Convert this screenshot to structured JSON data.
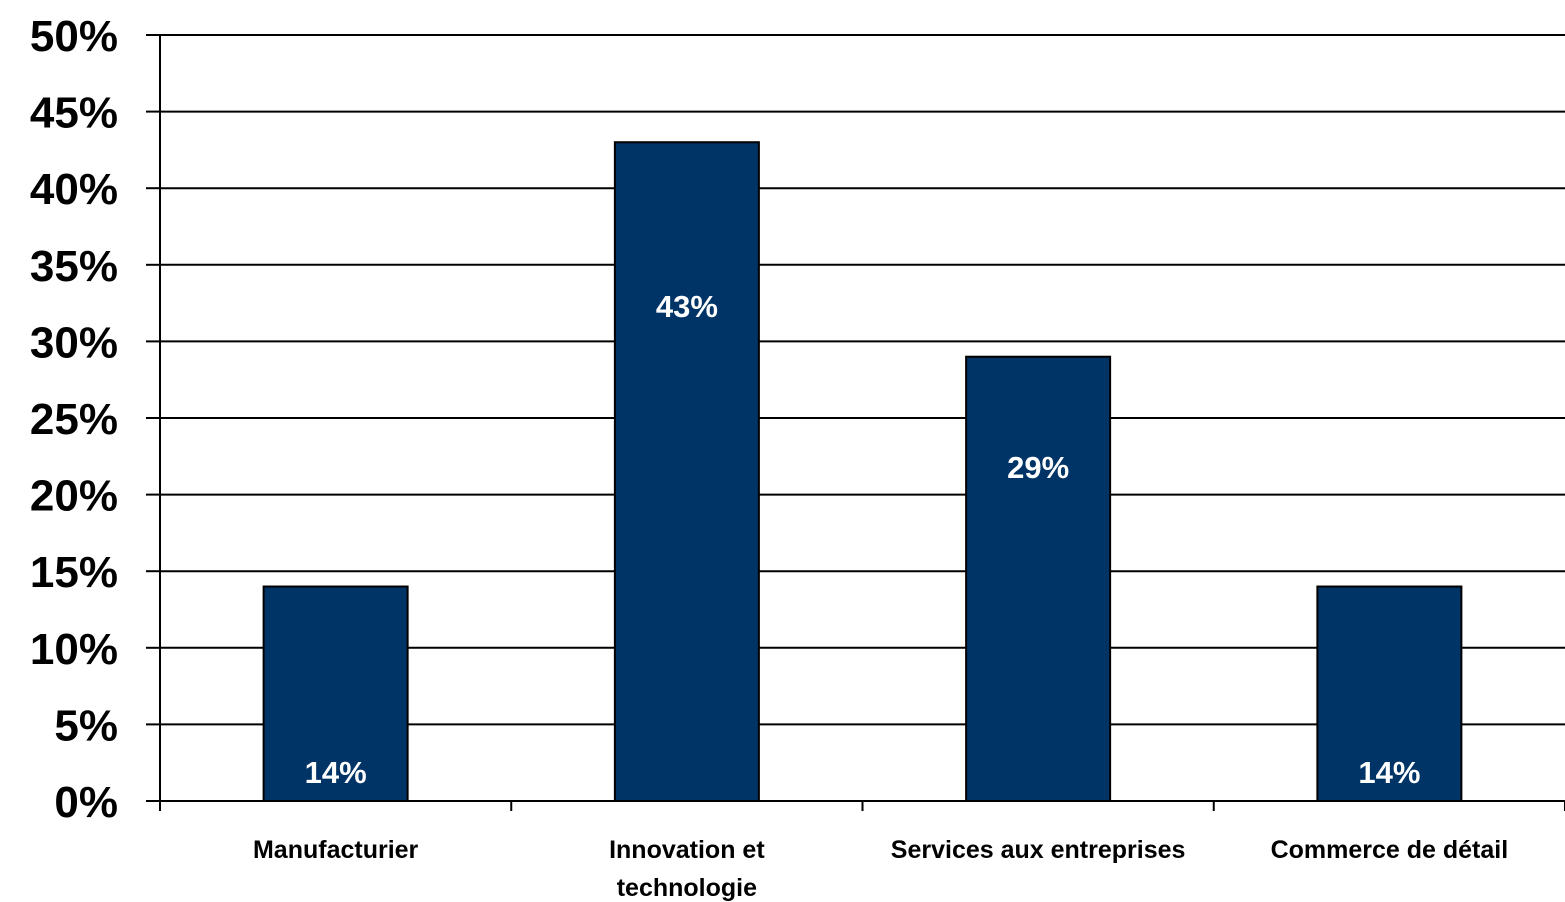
{
  "chart_data": {
    "type": "bar",
    "categories": [
      [
        "Manufacturier"
      ],
      [
        "Innovation et",
        "technologie"
      ],
      [
        "Services aux entreprises"
      ],
      [
        "Commerce de détail"
      ]
    ],
    "values": [
      14,
      43,
      29,
      14
    ],
    "data_labels": [
      "14%",
      "43%",
      "29%",
      "14%"
    ],
    "ylim": [
      0,
      50
    ],
    "yticks": [
      0,
      5,
      10,
      15,
      20,
      25,
      30,
      35,
      40,
      45,
      50
    ],
    "ytick_labels": [
      "0%",
      "5%",
      "10%",
      "15%",
      "20%",
      "25%",
      "30%",
      "35%",
      "40%",
      "45%",
      "50%"
    ],
    "title": "",
    "xlabel": "",
    "ylabel": "",
    "grid": true,
    "legend": "none",
    "colors": {
      "bar": "#003366",
      "bar_outline": "#000000",
      "data_label": "#ffffff",
      "gridline": "#000000",
      "text": "#000000"
    }
  }
}
